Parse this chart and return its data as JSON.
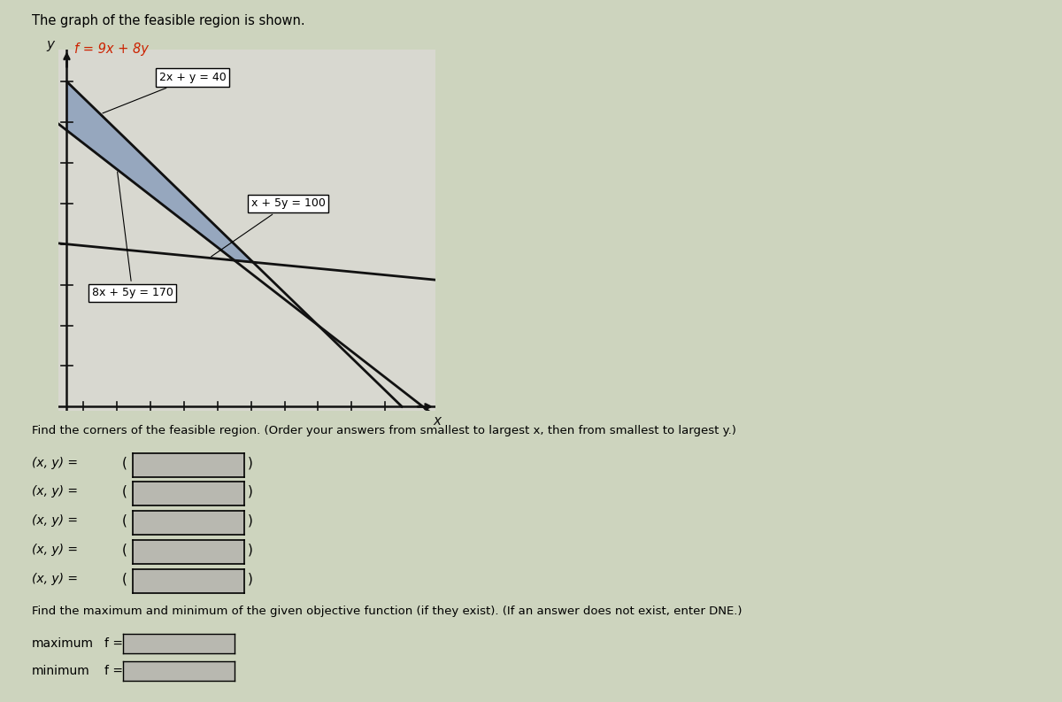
{
  "title_text": "The graph of the feasible region is shown.",
  "objective": "f = 9x + 8y",
  "line1_label": "2x + y = 40",
  "line2_label": "x + 5y = 100",
  "line3_label": "8x + 5y = 170",
  "xlabel": "x",
  "ylabel": "y",
  "page_bg": "#cdd4be",
  "plot_bg_color": "#d8d8d0",
  "feasible_color": "#6080b0",
  "feasible_alpha": 0.55,
  "line_color": "#111111",
  "axis_color": "#111111",
  "xlim": [
    -0.5,
    22
  ],
  "ylim": [
    -0.5,
    44
  ],
  "answer_text": "Find the corners of the feasible region. (Order your answers from smallest to largest x, then from smallest to largest y.)",
  "maxmin_text": "Find the maximum and minimum of the given objective function (if they exist). (If an answer does not exist, enter DNE.)",
  "maximum_label": "maximum",
  "minimum_label": "minimum",
  "f_label": "f =",
  "corners_count": 5,
  "obj_color": "#cc2200"
}
